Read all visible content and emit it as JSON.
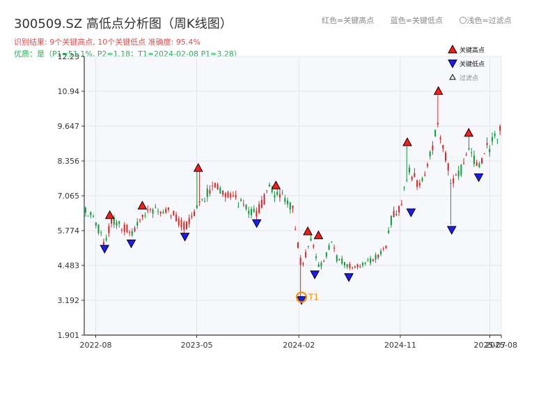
{
  "title": "300509.SZ 高低点分析图（周K线图）",
  "subtitle_result": "识别结果: 9个关键高点, 10个关键低点  准确度: 95.4%",
  "subtitle_quality": "优质：是（P1=51.1%, P2=1.18；T1=2024-02-08 P1=3.28）",
  "top_legend": {
    "red": "红色=关键高点",
    "blue": "蓝色=关键低点",
    "light": "〇浅色=过滤点"
  },
  "colors": {
    "up": "#d62728",
    "down": "#119a3c",
    "high_marker": "#ff1a1a",
    "low_marker": "#1a1aff",
    "t1_ring": "#ff8c00",
    "plot_bg": "#f7f8fb"
  },
  "chart_data": {
    "type": "candlestick",
    "ylim": [
      1.901,
      12.23
    ],
    "yticks": [
      "12.23",
      "10.94",
      "9.647",
      "8.356",
      "7.065",
      "5.774",
      "4.483",
      "3.192",
      "1.901"
    ],
    "xlim": [
      "2022-07-01",
      "2025-08-01"
    ],
    "xticks": [
      {
        "label": "2022-08",
        "date": "2022-08-01"
      },
      {
        "label": "2023-05",
        "date": "2023-05-01"
      },
      {
        "label": "2024-02",
        "date": "2024-02-01"
      },
      {
        "label": "2024-11",
        "date": "2024-11-01"
      },
      {
        "label": "2025-07",
        "date": "2025-07-01"
      },
      {
        "label": "2025-08",
        "date": "2025-08-01"
      }
    ],
    "price_anchors": [
      {
        "date": "2022-07-01",
        "price": 6.5
      },
      {
        "date": "2022-08-01",
        "price": 6.1
      },
      {
        "date": "2022-08-25",
        "price": 5.3
      },
      {
        "date": "2022-09-15",
        "price": 6.2
      },
      {
        "date": "2022-11-05",
        "price": 5.7
      },
      {
        "date": "2022-12-20",
        "price": 6.5
      },
      {
        "date": "2023-02-20",
        "price": 6.5
      },
      {
        "date": "2023-03-30",
        "price": 5.9
      },
      {
        "date": "2023-05-15",
        "price": 6.8
      },
      {
        "date": "2023-06-15",
        "price": 7.5
      },
      {
        "date": "2023-09-15",
        "price": 6.6
      },
      {
        "date": "2023-10-10",
        "price": 6.4
      },
      {
        "date": "2023-11-15",
        "price": 7.3
      },
      {
        "date": "2023-12-15",
        "price": 7.1
      },
      {
        "date": "2024-01-15",
        "price": 6.6
      },
      {
        "date": "2024-02-08",
        "price": 4.4
      },
      {
        "date": "2024-03-05",
        "price": 5.5
      },
      {
        "date": "2024-03-25",
        "price": 4.4
      },
      {
        "date": "2024-05-01",
        "price": 5.3
      },
      {
        "date": "2024-05-15",
        "price": 4.7
      },
      {
        "date": "2024-06-30",
        "price": 4.4
      },
      {
        "date": "2024-08-15",
        "price": 4.7
      },
      {
        "date": "2024-09-20",
        "price": 5.0
      },
      {
        "date": "2024-10-10",
        "price": 6.3
      },
      {
        "date": "2024-11-01",
        "price": 6.6
      },
      {
        "date": "2024-11-25",
        "price": 8.0
      },
      {
        "date": "2024-12-20",
        "price": 7.5
      },
      {
        "date": "2025-01-15",
        "price": 8.3
      },
      {
        "date": "2025-02-10",
        "price": 9.6
      },
      {
        "date": "2025-03-05",
        "price": 8.5
      },
      {
        "date": "2025-03-20",
        "price": 7.5
      },
      {
        "date": "2025-04-15",
        "price": 8.0
      },
      {
        "date": "2025-05-05",
        "price": 9.0
      },
      {
        "date": "2025-05-25",
        "price": 8.2
      },
      {
        "date": "2025-06-20",
        "price": 8.7
      },
      {
        "date": "2025-08-01",
        "price": 9.5
      }
    ],
    "spikes": [
      {
        "date": "2023-05-05",
        "high": 8.1
      },
      {
        "date": "2024-02-08",
        "low": 3.3
      },
      {
        "date": "2024-11-20",
        "high": 8.9
      },
      {
        "date": "2025-02-12",
        "high": 10.8
      },
      {
        "date": "2025-03-20",
        "low": 6.0
      },
      {
        "date": "2025-05-05",
        "high": 9.3
      }
    ],
    "key_highs": [
      {
        "date": "2022-09-08",
        "price": 6.35
      },
      {
        "date": "2022-12-05",
        "price": 6.7
      },
      {
        "date": "2023-05-05",
        "price": 8.1
      },
      {
        "date": "2023-12-01",
        "price": 7.45
      },
      {
        "date": "2024-02-25",
        "price": 5.75
      },
      {
        "date": "2024-03-25",
        "price": 5.6
      },
      {
        "date": "2024-11-20",
        "price": 9.05
      },
      {
        "date": "2025-02-12",
        "price": 10.95
      },
      {
        "date": "2025-05-05",
        "price": 9.4
      }
    ],
    "key_lows": [
      {
        "date": "2022-08-25",
        "price": 5.1
      },
      {
        "date": "2022-11-05",
        "price": 5.3
      },
      {
        "date": "2023-03-30",
        "price": 5.55
      },
      {
        "date": "2023-10-10",
        "price": 6.05
      },
      {
        "date": "2024-02-08",
        "price": 3.2
      },
      {
        "date": "2024-03-15",
        "price": 4.15
      },
      {
        "date": "2024-06-15",
        "price": 4.05
      },
      {
        "date": "2024-11-30",
        "price": 6.45
      },
      {
        "date": "2025-03-20",
        "price": 5.8
      },
      {
        "date": "2025-06-01",
        "price": 7.75
      }
    ],
    "t1_point": {
      "label": "T1",
      "date": "2024-02-08",
      "price": 3.28
    },
    "legend": {
      "position": "top-right",
      "items": [
        {
          "kind": "high",
          "label": "关键高点"
        },
        {
          "kind": "low",
          "label": "关键低点"
        },
        {
          "kind": "filtered",
          "label": "过滤点"
        }
      ]
    }
  }
}
